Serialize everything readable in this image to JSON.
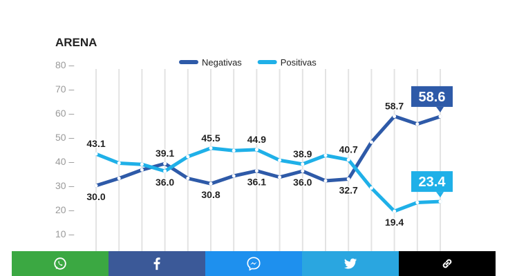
{
  "chart_data": {
    "type": "line",
    "title": "ARENA",
    "y_ticks": [
      "80",
      "70",
      "60",
      "50",
      "40",
      "30",
      "20",
      "10"
    ],
    "ylim": [
      0,
      80
    ],
    "x_count": 16,
    "grid": "vertical",
    "legend_position": "top-center",
    "series": [
      {
        "name": "Negativas",
        "color": "#2e5aa8",
        "values": [
          30.0,
          33.0,
          36.5,
          39.1,
          33.0,
          30.8,
          34.0,
          36.1,
          33.5,
          36.0,
          32.0,
          32.7,
          48.0,
          58.7,
          55.5,
          58.6
        ],
        "labels": [
          [
            "30.0",
            0
          ],
          [
            "39.1",
            3
          ],
          [
            "30.8",
            5
          ],
          [
            "36.1",
            7
          ],
          [
            "36.0",
            9
          ],
          [
            "32.7",
            11
          ],
          [
            "58.7",
            13
          ]
        ],
        "callout": {
          "text": "58.6",
          "index": 15
        }
      },
      {
        "name": "Positivas",
        "color": "#1fb0e8",
        "values": [
          43.1,
          39.3,
          38.8,
          36.0,
          42.0,
          45.5,
          44.5,
          44.9,
          40.5,
          38.9,
          42.5,
          40.7,
          29.0,
          19.4,
          23.0,
          23.4
        ],
        "labels": [
          [
            "43.1",
            0
          ],
          [
            "36.0",
            3
          ],
          [
            "45.5",
            5
          ],
          [
            "44.9",
            7
          ],
          [
            "38.9",
            9
          ],
          [
            "40.7",
            11
          ],
          [
            "19.4",
            13
          ]
        ],
        "callout": {
          "text": "23.4",
          "index": 15
        }
      }
    ]
  },
  "share": [
    {
      "name": "whatsapp",
      "color": "#3ba842",
      "icon": "whatsapp-icon"
    },
    {
      "name": "facebook",
      "color": "#3b5998",
      "icon": "facebook-icon"
    },
    {
      "name": "messenger",
      "color": "#1e90ee",
      "icon": "messenger-icon"
    },
    {
      "name": "twitter",
      "color": "#2aa6e0",
      "icon": "twitter-icon"
    },
    {
      "name": "link",
      "color": "#000000",
      "icon": "link-icon"
    }
  ]
}
